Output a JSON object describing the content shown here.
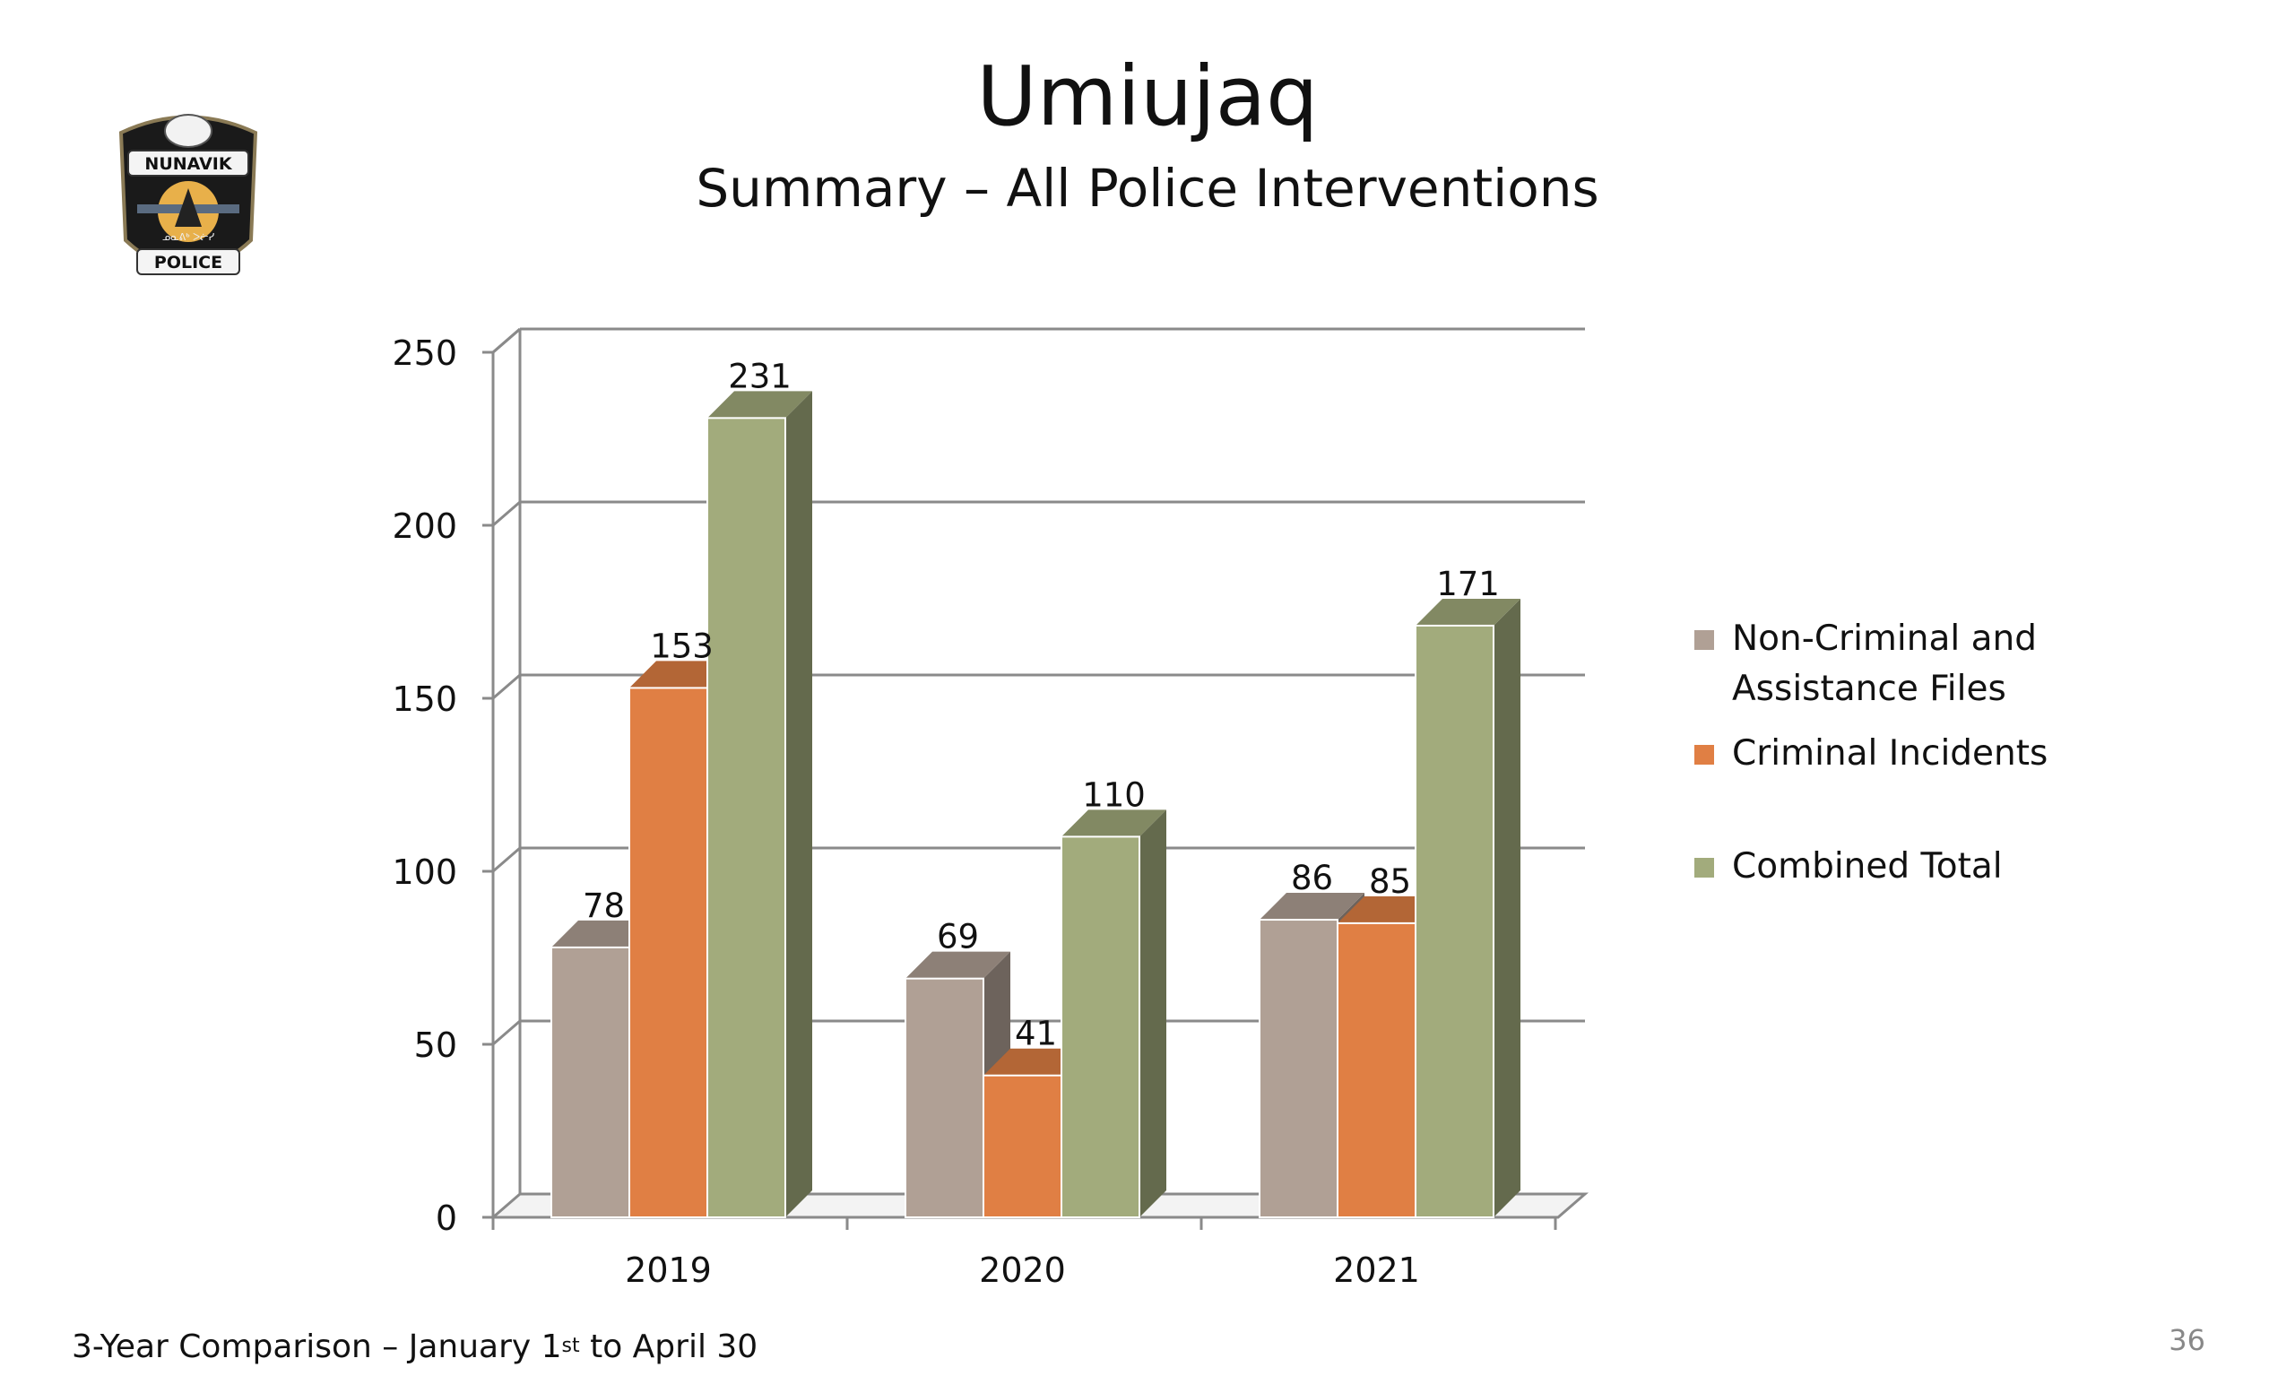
{
  "header": {
    "title": "Umiujaq",
    "subtitle": "Summary – All Police Interventions"
  },
  "logo": {
    "top_text": "NUNAVIK",
    "bottom_text": "POLICE",
    "icon": "nunavik-police-badge-icon"
  },
  "footer": {
    "text_before": "3-Year Comparison – January 1",
    "superscript": "st",
    "text_after": " to April 30",
    "page_number": "36"
  },
  "colors": {
    "non_criminal": "#b0a095",
    "criminal": "#e07f44",
    "combined": "#a2ab7c"
  },
  "chart_data": {
    "type": "bar",
    "three_d": true,
    "categories": [
      "2019",
      "2020",
      "2021"
    ],
    "series": [
      {
        "name": "Non-Criminal and Assistance Files",
        "values": [
          78,
          69,
          86
        ]
      },
      {
        "name": "Criminal Incidents",
        "values": [
          153,
          41,
          85
        ]
      },
      {
        "name": "Combined Total",
        "values": [
          231,
          110,
          171
        ]
      }
    ],
    "ylim": [
      0,
      250
    ],
    "yticks": [
      0,
      50,
      100,
      150,
      200,
      250
    ],
    "grid": true,
    "legend": "right",
    "legend_lines": [
      [
        "Non-Criminal and",
        "Assistance Files"
      ],
      [
        "Criminal Incidents"
      ],
      [
        "Combined Total"
      ]
    ]
  }
}
